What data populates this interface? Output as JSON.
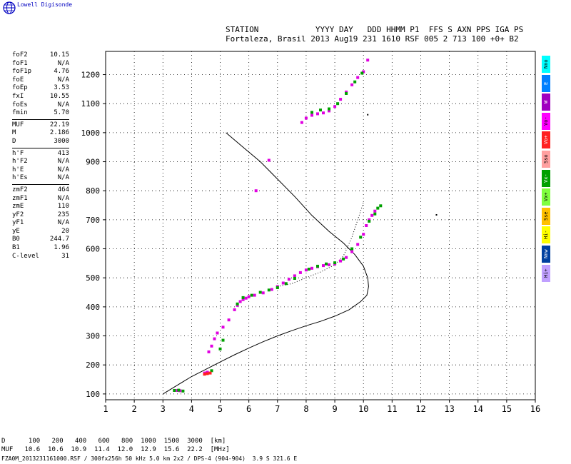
{
  "brand": "Lowell Digisonde",
  "header": {
    "line1": "STATION            YYYY DAY   DDD HHMM P1  FFS S AXN PPS IGA PS",
    "line2": "Fortaleza, Brasil 2013 Aug19 231 1610 RSF 005 2 713 100 +0+ B2"
  },
  "params": {
    "group1": [
      {
        "k": "foF2",
        "v": "10.15"
      },
      {
        "k": "foF1",
        "v": "N/A"
      },
      {
        "k": "foF1p",
        "v": "4.76"
      },
      {
        "k": "foE",
        "v": "N/A"
      },
      {
        "k": "foEp",
        "v": "3.53"
      },
      {
        "k": "fxI",
        "v": "10.55"
      },
      {
        "k": "foEs",
        "v": "N/A"
      },
      {
        "k": "fmin",
        "v": "5.70"
      }
    ],
    "group2": [
      {
        "k": "MUF",
        "v": "22.19"
      },
      {
        "k": "M",
        "v": "2.186"
      },
      {
        "k": "D",
        "v": "3000"
      }
    ],
    "group3": [
      {
        "k": "h'F",
        "v": "413"
      },
      {
        "k": "h'F2",
        "v": "N/A"
      },
      {
        "k": "h'E",
        "v": "N/A"
      },
      {
        "k": "h'Es",
        "v": "N/A"
      }
    ],
    "group4": [
      {
        "k": "zmF2",
        "v": "464"
      },
      {
        "k": "zmF1",
        "v": "N/A"
      },
      {
        "k": "zmE",
        "v": "110"
      },
      {
        "k": "yF2",
        "v": "235"
      },
      {
        "k": "yF1",
        "v": "N/A"
      },
      {
        "k": "yE",
        "v": "20"
      },
      {
        "k": "B0",
        "v": "244.7"
      },
      {
        "k": "B1",
        "v": "1.96"
      },
      {
        "k": "C-level",
        "v": "31"
      }
    ]
  },
  "legend": [
    {
      "label": "Nno",
      "color": "#00ffff"
    },
    {
      "label": "E",
      "color": "#0080ff"
    },
    {
      "label": "W",
      "color": "#a000c0"
    },
    {
      "label": "Vo-",
      "color": "#ff00ff"
    },
    {
      "label": "Vo+",
      "color": "#ff2020"
    },
    {
      "label": "Sso",
      "color": "#ffa0a0"
    },
    {
      "label": "Vx-",
      "color": "#00a000"
    },
    {
      "label": "Vx+",
      "color": "#80ff40"
    },
    {
      "label": "Sse",
      "color": "#ffc000"
    },
    {
      "label": "Hi-",
      "color": "#ffff00"
    },
    {
      "label": "Nnw",
      "color": "#0040a0"
    },
    {
      "label": "Hi+",
      "color": "#c0a0ff"
    }
  ],
  "bottom_table": {
    "d_label": "D",
    "d_values": [
      "100",
      "200",
      "400",
      "600",
      "800",
      "1000",
      "1500",
      "3000"
    ],
    "d_unit": "[km]",
    "muf_label": "MUF",
    "muf_values": [
      "10.6",
      "10.6",
      "10.9",
      "11.4",
      "12.0",
      "12.9",
      "15.6",
      "22.2"
    ],
    "muf_unit": "[MHz]"
  },
  "footer": "FZA0M_2013231161000.RSF / 300fx256h 50 kHz 5.0 km 2x2 / DPS-4 (904-904)  3.9 S 321.6 E",
  "chart_data": {
    "type": "scatter",
    "title": "",
    "xlabel": "",
    "ylabel": "",
    "xlim": [
      1,
      16
    ],
    "ylim": [
      80,
      1280
    ],
    "x_ticks": [
      1,
      2,
      3,
      4,
      5,
      6,
      7,
      8,
      9,
      10,
      11,
      12,
      13,
      14,
      15,
      16
    ],
    "y_ticks": [
      100,
      200,
      300,
      400,
      500,
      600,
      700,
      800,
      900,
      1000,
      1100,
      1200
    ],
    "grid": true,
    "series": [
      {
        "color": "#e000e0",
        "points": [
          [
            3.5,
            112
          ],
          [
            3.6,
            111
          ],
          [
            4.45,
            172
          ],
          [
            4.55,
            175
          ],
          [
            4.6,
            245
          ],
          [
            4.7,
            265
          ],
          [
            4.8,
            290
          ],
          [
            4.9,
            310
          ],
          [
            5.1,
            330
          ],
          [
            5.3,
            355
          ],
          [
            5.5,
            390
          ],
          [
            5.6,
            405
          ],
          [
            5.7,
            418
          ],
          [
            5.8,
            425
          ],
          [
            5.9,
            430
          ],
          [
            6.0,
            435
          ],
          [
            6.2,
            440
          ],
          [
            6.5,
            448
          ],
          [
            6.8,
            460
          ],
          [
            7.0,
            470
          ],
          [
            7.2,
            482
          ],
          [
            7.4,
            495
          ],
          [
            7.6,
            507
          ],
          [
            7.8,
            518
          ],
          [
            8.0,
            527
          ],
          [
            8.2,
            533
          ],
          [
            8.4,
            538
          ],
          [
            8.6,
            542
          ],
          [
            8.8,
            545
          ],
          [
            9.0,
            548
          ],
          [
            9.2,
            558
          ],
          [
            9.4,
            570
          ],
          [
            9.6,
            590
          ],
          [
            9.8,
            615
          ],
          [
            10.0,
            650
          ],
          [
            10.1,
            680
          ],
          [
            10.2,
            700
          ],
          [
            10.3,
            715
          ],
          [
            10.4,
            730
          ],
          [
            7.85,
            1035
          ],
          [
            8.0,
            1050
          ],
          [
            8.2,
            1060
          ],
          [
            8.4,
            1065
          ],
          [
            8.6,
            1068
          ],
          [
            8.8,
            1075
          ],
          [
            9.0,
            1090
          ],
          [
            9.2,
            1115
          ],
          [
            9.4,
            1140
          ],
          [
            9.6,
            1165
          ],
          [
            9.8,
            1190
          ],
          [
            10.0,
            1210
          ],
          [
            10.15,
            1250
          ],
          [
            6.25,
            800
          ],
          [
            6.7,
            905
          ]
        ]
      },
      {
        "color": "#00a000",
        "points": [
          [
            3.4,
            112
          ],
          [
            3.55,
            113
          ],
          [
            3.7,
            110
          ],
          [
            4.7,
            180
          ],
          [
            5.0,
            255
          ],
          [
            5.1,
            285
          ],
          [
            5.6,
            410
          ],
          [
            5.8,
            432
          ],
          [
            6.1,
            440
          ],
          [
            6.4,
            450
          ],
          [
            6.7,
            458
          ],
          [
            7.0,
            466
          ],
          [
            7.3,
            480
          ],
          [
            7.6,
            498
          ],
          [
            8.1,
            530
          ],
          [
            8.4,
            540
          ],
          [
            8.7,
            548
          ],
          [
            9.0,
            552
          ],
          [
            9.3,
            565
          ],
          [
            9.6,
            600
          ],
          [
            9.9,
            640
          ],
          [
            10.2,
            695
          ],
          [
            10.4,
            720
          ],
          [
            10.5,
            740
          ],
          [
            10.6,
            748
          ],
          [
            8.2,
            1070
          ],
          [
            8.5,
            1078
          ],
          [
            8.8,
            1082
          ],
          [
            9.1,
            1100
          ],
          [
            9.4,
            1135
          ],
          [
            9.7,
            1175
          ],
          [
            9.95,
            1205
          ]
        ]
      },
      {
        "color": "#ff2020",
        "points": [
          [
            4.45,
            168
          ],
          [
            4.55,
            170
          ],
          [
            4.65,
            172
          ]
        ]
      },
      {
        "color": "#000000",
        "points": [
          [
            12.55,
            717
          ],
          [
            10.15,
            1062
          ]
        ]
      }
    ],
    "profile_curve": [
      [
        3.0,
        100
      ],
      [
        3.5,
        130
      ],
      [
        4.0,
        160
      ],
      [
        4.5,
        185
      ],
      [
        5.0,
        210
      ],
      [
        5.5,
        235
      ],
      [
        6.0,
        258
      ],
      [
        6.5,
        280
      ],
      [
        7.0,
        300
      ],
      [
        7.5,
        318
      ],
      [
        8.0,
        335
      ],
      [
        8.5,
        350
      ],
      [
        9.0,
        368
      ],
      [
        9.5,
        390
      ],
      [
        9.9,
        418
      ],
      [
        10.12,
        440
      ],
      [
        10.18,
        470
      ],
      [
        10.15,
        500
      ],
      [
        10.0,
        540
      ],
      [
        9.7,
        580
      ],
      [
        9.3,
        620
      ],
      [
        8.8,
        660
      ],
      [
        8.2,
        715
      ],
      [
        7.6,
        780
      ],
      [
        7.0,
        840
      ],
      [
        6.4,
        900
      ],
      [
        5.8,
        950
      ],
      [
        5.2,
        1000
      ]
    ],
    "o_trace_dotted": [
      [
        7.0,
        470
      ],
      [
        7.5,
        480
      ],
      [
        8.0,
        500
      ],
      [
        8.5,
        520
      ],
      [
        9.0,
        545
      ],
      [
        9.3,
        575
      ],
      [
        9.6,
        640
      ],
      [
        9.8,
        700
      ],
      [
        10.0,
        760
      ]
    ]
  }
}
